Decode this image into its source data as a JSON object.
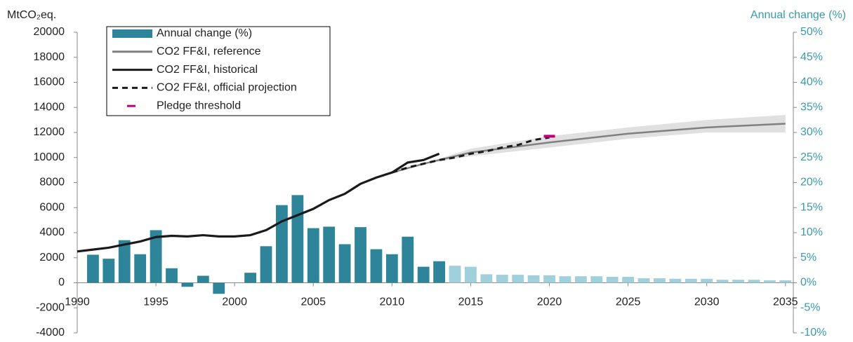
{
  "chart_data": {
    "type": "combo",
    "y_label": "MtCO₂eq.",
    "y2_label": "Annual change (%)",
    "xlim": [
      1990,
      2035.5
    ],
    "xticks": [
      1990,
      1995,
      2000,
      2005,
      2010,
      2015,
      2020,
      2025,
      2030,
      2035
    ],
    "ylim": [
      -4000,
      20000
    ],
    "yticks": [
      -4000,
      -2000,
      0,
      2000,
      4000,
      6000,
      8000,
      10000,
      12000,
      14000,
      16000,
      18000,
      20000
    ],
    "y2lim": [
      -10,
      50
    ],
    "y2ticks": [
      {
        "value": -10,
        "label": "-10%"
      },
      {
        "value": -5,
        "label": "-5%"
      },
      {
        "value": 0,
        "label": "0%"
      },
      {
        "value": 5,
        "label": "5%"
      },
      {
        "value": 10,
        "label": "10%"
      },
      {
        "value": 15,
        "label": "15%"
      },
      {
        "value": 20,
        "label": "20%"
      },
      {
        "value": 25,
        "label": "25%"
      },
      {
        "value": 30,
        "label": "30%"
      },
      {
        "value": 35,
        "label": "35%"
      },
      {
        "value": 40,
        "label": "40%"
      },
      {
        "value": 45,
        "label": "45%"
      },
      {
        "value": 50,
        "label": "50%"
      }
    ],
    "series": [
      {
        "name": "Annual change (%)",
        "type": "bar",
        "axis": "y2",
        "color": "#2e8599",
        "x": [
          1991,
          1992,
          1993,
          1994,
          1995,
          1996,
          1997,
          1998,
          1999,
          2000,
          2001,
          2002,
          2003,
          2004,
          2005,
          2006,
          2007,
          2008,
          2009,
          2010,
          2011,
          2012,
          2013,
          2014,
          2015,
          2016,
          2017,
          2018,
          2019,
          2020,
          2021,
          2022,
          2023,
          2024,
          2025,
          2026,
          2027,
          2028,
          2029,
          2030,
          2031,
          2032,
          2033,
          2034,
          2035
        ],
        "values": [
          5.6,
          4.8,
          8.5,
          5.7,
          10.5,
          2.9,
          -0.8,
          1.4,
          -2.2,
          0,
          2.0,
          7.3,
          15.5,
          17.5,
          10.9,
          11.2,
          7.7,
          11.1,
          6.7,
          5.7,
          9.2,
          3.2,
          4.3,
          3.4,
          3.2,
          1.7,
          1.6,
          1.6,
          1.5,
          1.5,
          1.3,
          1.3,
          1.3,
          1.2,
          1.2,
          0.9,
          0.9,
          0.8,
          0.8,
          0.8,
          0.6,
          0.6,
          0.6,
          0.5,
          0.5
        ],
        "colors": [
          "#2e8599",
          "#2e8599",
          "#2e8599",
          "#2e8599",
          "#2e8599",
          "#2e8599",
          "#2e8599",
          "#2e8599",
          "#2e8599",
          "#2e8599",
          "#2e8599",
          "#2e8599",
          "#2e8599",
          "#2e8599",
          "#2e8599",
          "#2e8599",
          "#2e8599",
          "#2e8599",
          "#2e8599",
          "#2e8599",
          "#2e8599",
          "#2e8599",
          "#2e8599",
          "#9fd0dc",
          "#9fd0dc",
          "#9fd0dc",
          "#9fd0dc",
          "#9fd0dc",
          "#9fd0dc",
          "#9fd0dc",
          "#9fd0dc",
          "#9fd0dc",
          "#9fd0dc",
          "#9fd0dc",
          "#9fd0dc",
          "#9fd0dc",
          "#9fd0dc",
          "#9fd0dc",
          "#9fd0dc",
          "#9fd0dc",
          "#9fd0dc",
          "#9fd0dc",
          "#9fd0dc",
          "#9fd0dc",
          "#9fd0dc"
        ]
      },
      {
        "name": "CO2 FF&I, reference",
        "type": "line",
        "color": "#808080",
        "x": [
          2010,
          2012,
          2014,
          2015,
          2020,
          2025,
          2030,
          2035
        ],
        "values": [
          8800,
          9500,
          10100,
          10400,
          11200,
          11900,
          12400,
          12700
        ],
        "range_lower": [
          8800,
          9500,
          9900,
          10100,
          10800,
          11500,
          12000,
          12000
        ],
        "range_upper": [
          8800,
          9500,
          10300,
          10700,
          11700,
          12400,
          13000,
          13400
        ],
        "range_color": "#e0e0e0"
      },
      {
        "name": "CO2 FF&I, historical",
        "type": "line",
        "color": "#1a1a1a",
        "x": [
          1990,
          1991,
          1992,
          1993,
          1994,
          1995,
          1996,
          1997,
          1998,
          1999,
          2000,
          2001,
          2002,
          2003,
          2004,
          2005,
          2006,
          2007,
          2008,
          2009,
          2010,
          2011,
          2012,
          2013
        ],
        "values": [
          2500,
          2650,
          2800,
          3050,
          3300,
          3650,
          3750,
          3700,
          3800,
          3700,
          3700,
          3800,
          4200,
          4900,
          5400,
          5900,
          6600,
          7100,
          7900,
          8400,
          8800,
          9600,
          9800,
          10300
        ]
      },
      {
        "name": "CO2 FF&I, official projection",
        "type": "line",
        "dashed": true,
        "color": "#1a1a1a",
        "x": [
          2010,
          2011,
          2012,
          2013,
          2014,
          2015,
          2016,
          2017,
          2018,
          2019,
          2020
        ],
        "values": [
          8800,
          9200,
          9500,
          9800,
          10000,
          10300,
          10500,
          10800,
          11000,
          11400,
          11600
        ]
      },
      {
        "name": "Pledge threshold",
        "type": "marker",
        "color": "#c0007a",
        "x": [
          2020
        ],
        "values": [
          11700
        ]
      }
    ]
  }
}
